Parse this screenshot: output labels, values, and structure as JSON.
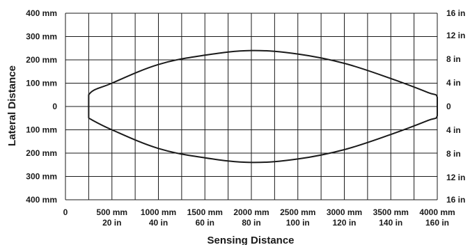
{
  "chart_data": {
    "type": "line",
    "xlabel": "Sensing Distance",
    "ylabel": "Lateral Distance",
    "xlim": [
      0,
      4000
    ],
    "ylim": [
      -400,
      400
    ],
    "grid": true,
    "x_ticks": [
      {
        "value": 0,
        "mm": "0",
        "in": ""
      },
      {
        "value": 500,
        "mm": "500 mm",
        "in": "20 in"
      },
      {
        "value": 1000,
        "mm": "1000 mm",
        "in": "40 in"
      },
      {
        "value": 1500,
        "mm": "1500 mm",
        "in": "60 in"
      },
      {
        "value": 2000,
        "mm": "2000 mm",
        "in": "80 in"
      },
      {
        "value": 2500,
        "mm": "2500 mm",
        "in": "100 in"
      },
      {
        "value": 3000,
        "mm": "3000 mm",
        "in": "120 in"
      },
      {
        "value": 3500,
        "mm": "3500 mm",
        "in": "140 in"
      },
      {
        "value": 4000,
        "mm": "4000 mm",
        "in": "160 in"
      }
    ],
    "y_ticks_left": [
      {
        "value": 400,
        "label": "400 mm"
      },
      {
        "value": 300,
        "label": "300 mm"
      },
      {
        "value": 200,
        "label": "200 mm"
      },
      {
        "value": 100,
        "label": "100 mm"
      },
      {
        "value": 0,
        "label": "0"
      },
      {
        "value": -100,
        "label": "100 mm"
      },
      {
        "value": -200,
        "label": "200 mm"
      },
      {
        "value": -300,
        "label": "300 mm"
      },
      {
        "value": -400,
        "label": "400 mm"
      }
    ],
    "y_ticks_right": [
      {
        "value": 406.4,
        "label": "16 in"
      },
      {
        "value": 304.8,
        "label": "12 in"
      },
      {
        "value": 203.2,
        "label": "8 in"
      },
      {
        "value": 101.6,
        "label": "4 in"
      },
      {
        "value": 0,
        "label": "0"
      },
      {
        "value": -101.6,
        "label": "4 in"
      },
      {
        "value": -203.2,
        "label": "8 in"
      },
      {
        "value": -304.8,
        "label": "12 in"
      },
      {
        "value": -406.4,
        "label": "16 in"
      }
    ],
    "series": [
      {
        "color": "#1a1a1a",
        "x": [
          250,
          250,
          500,
          1000,
          1500,
          2000,
          2500,
          3000,
          3500,
          3900,
          4000,
          4000,
          3900,
          3500,
          3000,
          2500,
          2000,
          1500,
          1000,
          500,
          250,
          250
        ],
        "y": [
          -50,
          50,
          100,
          180,
          220,
          240,
          225,
          185,
          120,
          60,
          40,
          -40,
          -60,
          -120,
          -185,
          -225,
          -240,
          -220,
          -180,
          -100,
          -50,
          -50
        ]
      }
    ]
  }
}
